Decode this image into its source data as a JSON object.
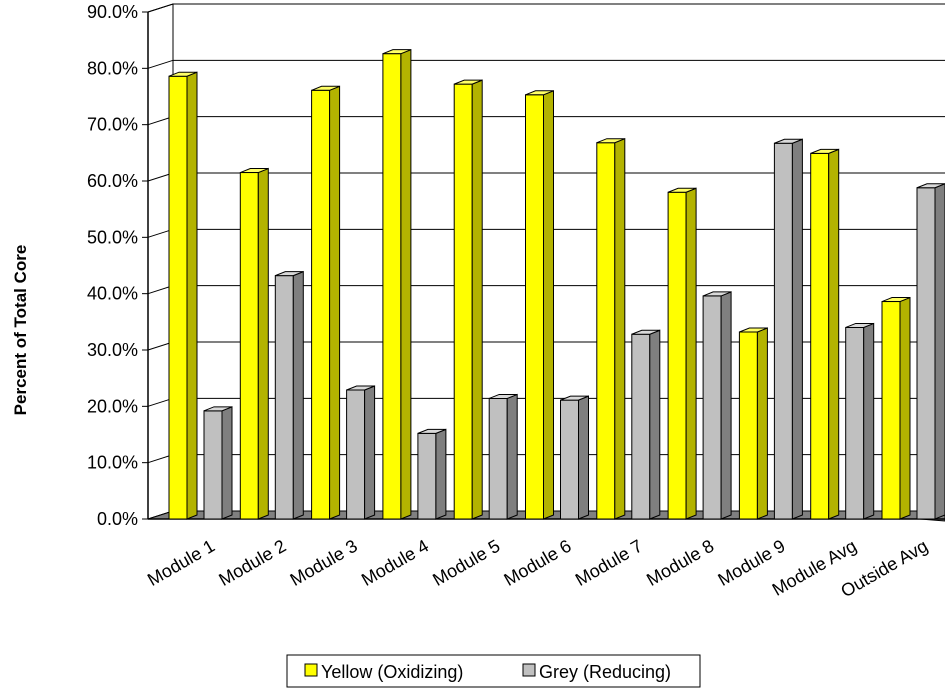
{
  "chart_data": {
    "type": "bar",
    "title": "",
    "xlabel": "",
    "ylabel": "Percent of Total Core",
    "ylim": [
      0,
      90
    ],
    "y_tick_labels": [
      "0.0%",
      "10.0%",
      "20.0%",
      "30.0%",
      "40.0%",
      "50.0%",
      "60.0%",
      "70.0%",
      "80.0%",
      "90.0%"
    ],
    "categories": [
      "Module 1",
      "Module 2",
      "Module 3",
      "Module 4",
      "Module 5",
      "Module 6",
      "Module 7",
      "Module 8",
      "Module 9",
      "Module Avg",
      "Outside Avg"
    ],
    "series": [
      {
        "name": "Yellow (Oxidizing)",
        "color": "#ffff00",
        "side_color": "#b3b300",
        "top_color": "#ffff66",
        "values": [
          78.6,
          61.5,
          76.1,
          82.6,
          77.2,
          75.3,
          66.8,
          58.0,
          33.2,
          64.9,
          38.6
        ]
      },
      {
        "name": "Grey (Reducing)",
        "color": "#c0c0c0",
        "side_color": "#7f7f7f",
        "top_color": "#d9d9d9",
        "values": [
          19.2,
          43.2,
          22.9,
          15.2,
          21.4,
          21.1,
          32.8,
          39.6,
          66.7,
          34.0,
          58.8
        ]
      }
    ],
    "grid": true,
    "legend_position": "bottom"
  }
}
